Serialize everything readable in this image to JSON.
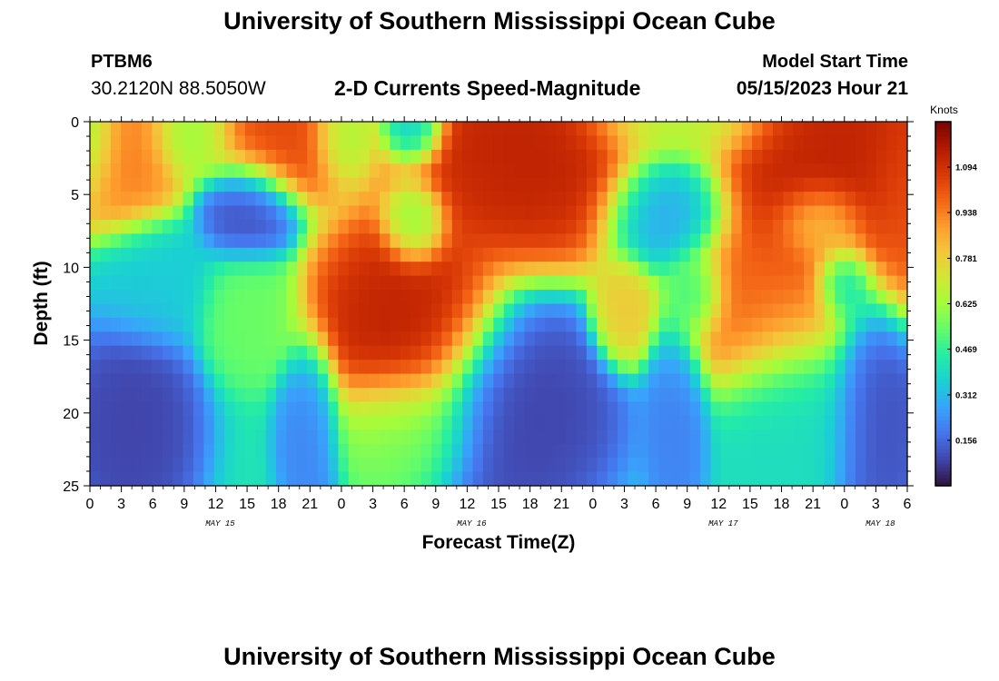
{
  "header": {
    "title": "University of Southern Mississippi Ocean Cube",
    "station_id": "PTBM6",
    "coordinates": "30.2120N  88.5050W",
    "plot_title": "2-D Currents Speed-Magnitude",
    "model_start_label": "Model Start Time",
    "model_start_value": "05/15/2023 Hour 21"
  },
  "footer": {
    "title": "University of Southern Mississippi Ocean Cube"
  },
  "chart_data": {
    "type": "heatmap",
    "xlabel": "Forecast Time(Z)",
    "ylabel": "Depth (ft)",
    "x_range_hours": [
      0,
      78
    ],
    "y_range": [
      0,
      25
    ],
    "y_inverted": true,
    "x_tick_labels": [
      "0",
      "3",
      "6",
      "9",
      "12",
      "15",
      "18",
      "21",
      "0",
      "3",
      "6",
      "9",
      "12",
      "15",
      "18",
      "21",
      "0",
      "3",
      "6",
      "9",
      "12",
      "15",
      "18",
      "21",
      "0",
      "3",
      "6"
    ],
    "y_ticks": [
      0,
      5,
      10,
      15,
      20,
      25
    ],
    "date_labels": [
      {
        "label": "MAY 15",
        "hour": 12
      },
      {
        "label": "MAY 16",
        "hour": 36
      },
      {
        "label": "MAY 17",
        "hour": 60
      },
      {
        "label": "MAY 18",
        "hour": 75
      }
    ],
    "colorbar": {
      "title": "Knots",
      "ticks": [
        "0.156",
        "0.312",
        "0.469",
        "0.625",
        "0.781",
        "0.938",
        "1.094"
      ],
      "range": [
        0.0,
        1.25
      ]
    },
    "colormap": [
      "#30123b",
      "#4145ab",
      "#4675ed",
      "#39a2fc",
      "#1bcfd4",
      "#24eca6",
      "#61fc6c",
      "#a4fc3b",
      "#d1e834",
      "#f3c63a",
      "#fe9b2d",
      "#f36315",
      "#d93806",
      "#b11901",
      "#7a0403"
    ],
    "speed_features": [
      {
        "t": 3,
        "d": 2,
        "s": 0.95,
        "rt": 4,
        "rd": 4
      },
      {
        "t": 0,
        "d": 1,
        "s": 0.55,
        "rt": 2,
        "rd": 3
      },
      {
        "t": 10,
        "d": 1,
        "s": 0.6,
        "rt": 3,
        "rd": 2
      },
      {
        "t": 18,
        "d": 1,
        "s": 1.05,
        "rt": 5,
        "rd": 3
      },
      {
        "t": 24,
        "d": 1,
        "s": 0.6,
        "rt": 2,
        "rd": 2
      },
      {
        "t": 31,
        "d": 0,
        "s": 0.3,
        "rt": 2,
        "rd": 2
      },
      {
        "t": 42,
        "d": 2,
        "s": 1.15,
        "rt": 8,
        "rd": 5
      },
      {
        "t": 56,
        "d": 0,
        "s": 0.65,
        "rt": 6,
        "rd": 2
      },
      {
        "t": 72,
        "d": 3,
        "s": 1.15,
        "rt": 9,
        "rd": 6
      },
      {
        "t": 78,
        "d": 6,
        "s": 1.0,
        "rt": 3,
        "rd": 5
      },
      {
        "t": 15,
        "d": 6,
        "s": 0.1,
        "rt": 3,
        "rd": 2.5
      },
      {
        "t": 55,
        "d": 6,
        "s": 0.25,
        "rt": 4,
        "rd": 3
      },
      {
        "t": 31,
        "d": 7,
        "s": 0.55,
        "rt": 2,
        "rd": 2
      },
      {
        "t": 70,
        "d": 7,
        "s": 0.7,
        "rt": 3,
        "rd": 2
      },
      {
        "t": 6,
        "d": 11,
        "s": 0.35,
        "rt": 4,
        "rd": 3
      },
      {
        "t": 15,
        "d": 13,
        "s": 0.55,
        "rt": 3,
        "rd": 3
      },
      {
        "t": 30,
        "d": 14,
        "s": 1.15,
        "rt": 6,
        "rd": 5
      },
      {
        "t": 51,
        "d": 13,
        "s": 0.8,
        "rt": 2,
        "rd": 2.5
      },
      {
        "t": 58,
        "d": 12,
        "s": 0.4,
        "rt": 2,
        "rd": 2
      },
      {
        "t": 64,
        "d": 13,
        "s": 1.0,
        "rt": 6,
        "rd": 4
      },
      {
        "t": 72,
        "d": 11,
        "s": 0.3,
        "rt": 2,
        "rd": 2
      },
      {
        "t": 4,
        "d": 21,
        "s": 0.08,
        "rt": 4,
        "rd": 5
      },
      {
        "t": 21,
        "d": 21,
        "s": 0.2,
        "rt": 2,
        "rd": 4
      },
      {
        "t": 30,
        "d": 21,
        "s": 0.55,
        "rt": 5,
        "rd": 3
      },
      {
        "t": 41,
        "d": 20,
        "s": 0.08,
        "rt": 6,
        "rd": 5
      },
      {
        "t": 56,
        "d": 20,
        "s": 0.2,
        "rt": 2,
        "rd": 5
      },
      {
        "t": 67,
        "d": 20,
        "s": 0.4,
        "rt": 5,
        "rd": 5
      },
      {
        "t": 75,
        "d": 20,
        "s": 0.1,
        "rt": 3,
        "rd": 6
      }
    ],
    "background_speed": 0.42
  }
}
